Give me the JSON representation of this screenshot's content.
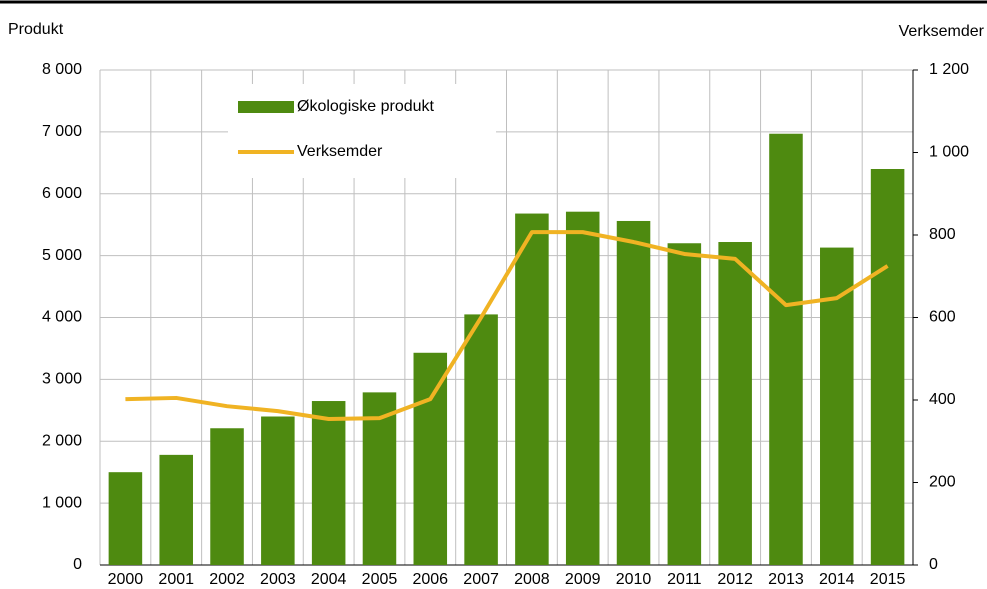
{
  "chart_data": {
    "type": "bar+line",
    "y_label": "Produkt",
    "y2_label": "Verksemder",
    "categories": [
      "2000",
      "2001",
      "2002",
      "2003",
      "2004",
      "2005",
      "2006",
      "2007",
      "2008",
      "2009",
      "2010",
      "2011",
      "2012",
      "2013",
      "2014",
      "2015"
    ],
    "series": [
      {
        "name": "Økologiske produkt",
        "type": "bar",
        "color": "#4e8a10",
        "values": [
          1500,
          1780,
          2210,
          2400,
          2650,
          2790,
          3430,
          4050,
          5680,
          5710,
          5560,
          5200,
          5220,
          6970,
          5130,
          6400
        ]
      },
      {
        "name": "Verksemder",
        "type": "line",
        "axis": "y2",
        "color": "#f0b323",
        "values": [
          402,
          405,
          385,
          373,
          354,
          356,
          402,
          600,
          807,
          807,
          783,
          754,
          742,
          630,
          647,
          725
        ]
      }
    ],
    "ylim": [
      0,
      8000
    ],
    "yticks": [
      0,
      {
        "value": 1000,
        "label": "1 000"
      },
      {
        "value": 2000,
        "label": "2 000"
      },
      {
        "value": 3000,
        "label": "3 000"
      },
      {
        "value": 4000,
        "label": "4 000"
      },
      {
        "value": 5000,
        "label": "5 000"
      },
      {
        "value": 6000,
        "label": "6 000"
      },
      {
        "value": 7000,
        "label": "7 000"
      },
      {
        "value": 8000,
        "label": "8 000"
      }
    ],
    "y2lim": [
      0,
      1200
    ],
    "y2ticks": [
      0,
      200,
      400,
      600,
      800,
      {
        "value": 1000,
        "label": "1 000"
      },
      {
        "value": 1200,
        "label": "1 200"
      }
    ],
    "grid": true
  }
}
